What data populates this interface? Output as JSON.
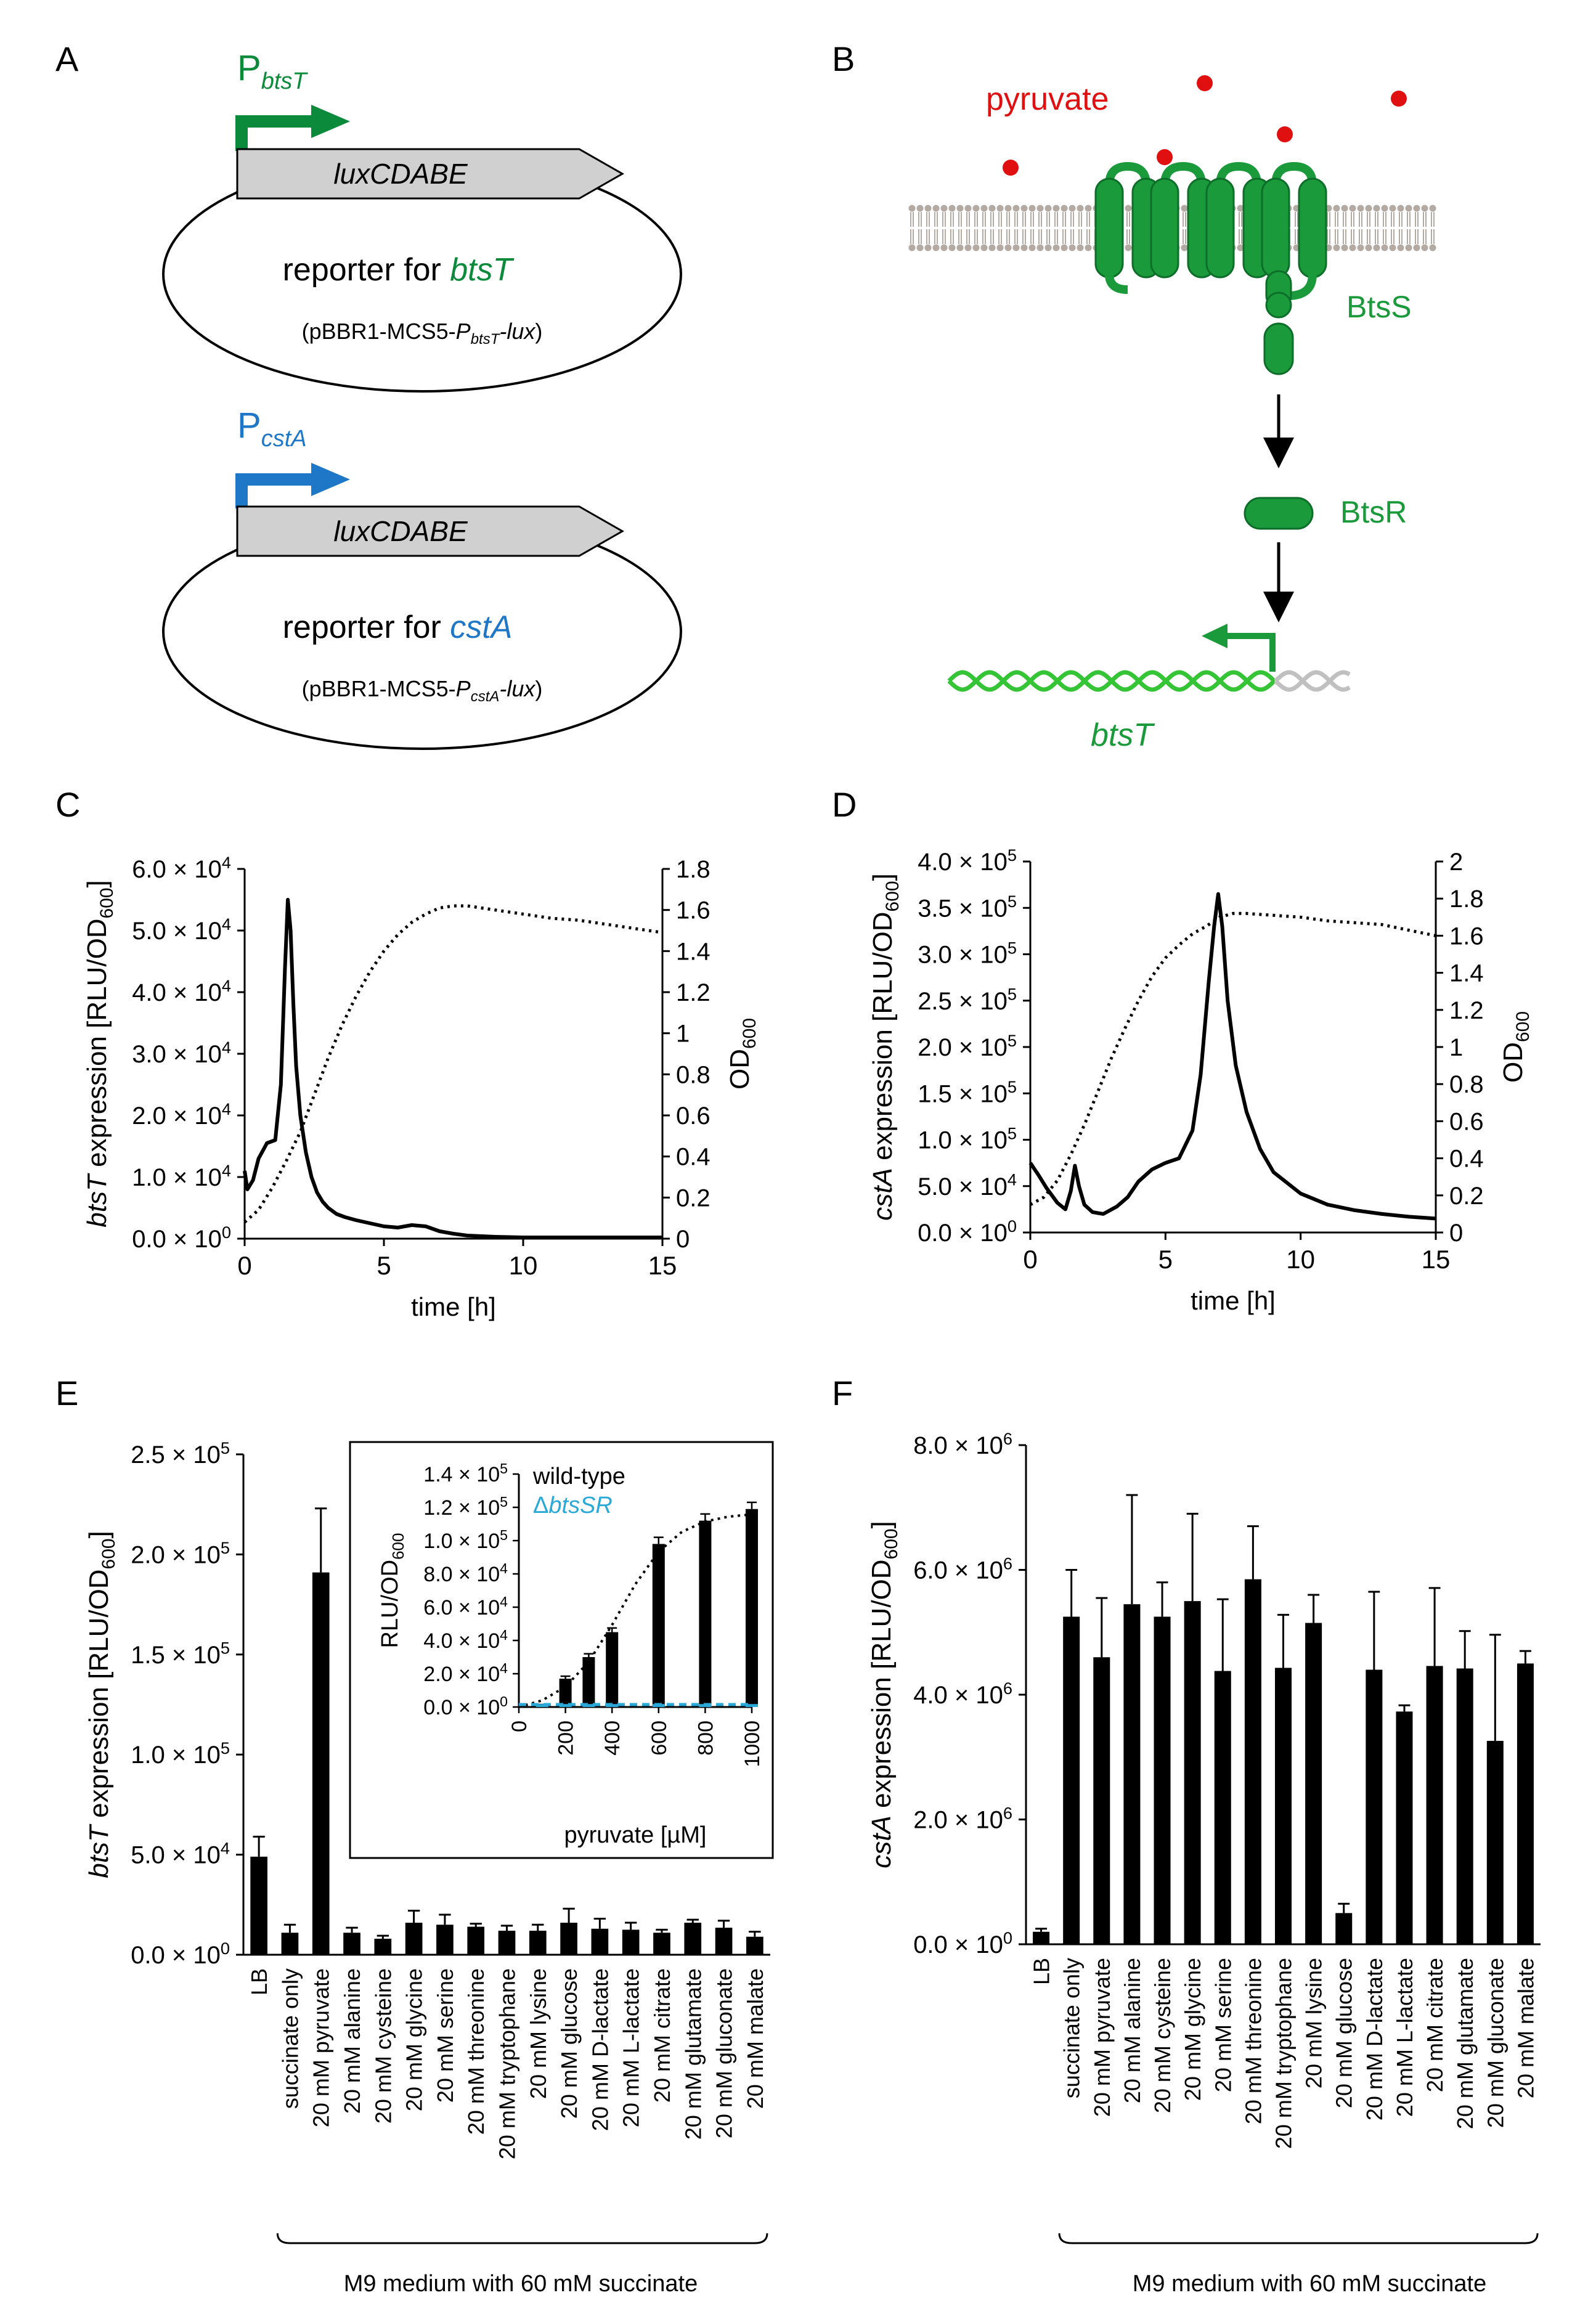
{
  "panels": {
    "A": {
      "letter": "A",
      "reporter1": {
        "promoter_main": "P",
        "promoter_sub": "btsT",
        "gene": "luxCDABE",
        "label_prefix": "reporter for ",
        "label_gene": "btsT",
        "plasmid_prefix": "(pBBR1-MCS5-",
        "plasmid_p": "P",
        "plasmid_psub": "btsT",
        "plasmid_suffix": "-lux)"
      },
      "reporter2": {
        "promoter_main": "P",
        "promoter_sub": "cstA",
        "gene": "luxCDABE",
        "label_prefix": "reporter for ",
        "label_gene": "cstA",
        "plasmid_prefix": "(pBBR1-MCS5-",
        "plasmid_p": "P",
        "plasmid_psub": "cstA",
        "plasmid_suffix": "-lux)"
      }
    },
    "B": {
      "letter": "B",
      "pyruvate": "pyruvate",
      "sensor": "BtsS",
      "regulator": "BtsR",
      "target": "btsT"
    },
    "C": {
      "letter": "C",
      "ylabel_gene": "btsT",
      "ylabel_rest": " expression [RLU/OD",
      "ylabel_sub": "600",
      "ylabel_end": "]",
      "y2label": "OD",
      "y2label_sub": "600",
      "xlabel": "time [h]",
      "yticks": [
        {
          "m": "0.0 × 10",
          "e": "0"
        },
        {
          "m": "1.0 × 10",
          "e": "4"
        },
        {
          "m": "2.0 × 10",
          "e": "4"
        },
        {
          "m": "3.0 × 10",
          "e": "4"
        },
        {
          "m": "4.0 × 10",
          "e": "4"
        },
        {
          "m": "5.0 × 10",
          "e": "4"
        },
        {
          "m": "6.0 × 10",
          "e": "4"
        }
      ],
      "y2ticks": [
        "0",
        "0.2",
        "0.4",
        "0.6",
        "0.8",
        "1",
        "1.2",
        "1.4",
        "1.6",
        "1.8"
      ],
      "xticks": [
        "0",
        "5",
        "10",
        "15"
      ]
    },
    "D": {
      "letter": "D",
      "ylabel_gene": "cstA",
      "ylabel_rest": " expression [RLU/OD",
      "ylabel_sub": "600",
      "ylabel_end": "]",
      "y2label": "OD",
      "y2label_sub": "600",
      "xlabel": "time [h]",
      "yticks": [
        {
          "m": "0.0 × 10",
          "e": "0"
        },
        {
          "m": "5.0 × 10",
          "e": "4"
        },
        {
          "m": "1.0 × 10",
          "e": "5"
        },
        {
          "m": "1.5 × 10",
          "e": "5"
        },
        {
          "m": "2.0 × 10",
          "e": "5"
        },
        {
          "m": "2.5 × 10",
          "e": "5"
        },
        {
          "m": "3.0 × 10",
          "e": "5"
        },
        {
          "m": "3.5 × 10",
          "e": "5"
        },
        {
          "m": "4.0 × 10",
          "e": "5"
        }
      ],
      "y2ticks": [
        "0",
        "0.2",
        "0.4",
        "0.6",
        "0.8",
        "1",
        "1.2",
        "1.4",
        "1.6",
        "1.8",
        "2"
      ],
      "xticks": [
        "0",
        "5",
        "10",
        "15"
      ]
    },
    "E": {
      "letter": "E",
      "ylabel_gene": "btsT",
      "ylabel_rest": " expression [RLU/OD",
      "ylabel_sub": "600",
      "ylabel_end": "]",
      "yticks": [
        {
          "m": "0.0 × 10",
          "e": "0"
        },
        {
          "m": "5.0 × 10",
          "e": "4"
        },
        {
          "m": "1.0 × 10",
          "e": "5"
        },
        {
          "m": "1.5 × 10",
          "e": "5"
        },
        {
          "m": "2.0 × 10",
          "e": "5"
        },
        {
          "m": "2.5 × 10",
          "e": "5"
        }
      ],
      "bracket_label": "M9 medium with 60 mM succinate",
      "inset": {
        "ylabel_main": "RLU/OD",
        "ylabel_sub": "600",
        "xlabel": "pyruvate [µM]",
        "legend_wt": "wild-type",
        "legend_mut_prefix": "Δ",
        "legend_mut": "btsSR",
        "yticks": [
          {
            "m": "0.0 × 10",
            "e": "0"
          },
          {
            "m": "2.0 × 10",
            "e": "4"
          },
          {
            "m": "4.0 × 10",
            "e": "4"
          },
          {
            "m": "6.0 × 10",
            "e": "4"
          },
          {
            "m": "8.0 × 10",
            "e": "4"
          },
          {
            "m": "1.0 × 10",
            "e": "5"
          },
          {
            "m": "1.2 × 10",
            "e": "5"
          },
          {
            "m": "1.4 × 10",
            "e": "5"
          }
        ],
        "xticks": [
          "0",
          "200",
          "400",
          "600",
          "800",
          "1000"
        ]
      }
    },
    "F": {
      "letter": "F",
      "ylabel_gene": "cstA",
      "ylabel_rest": " expression [RLU/OD",
      "ylabel_sub": "600",
      "ylabel_end": "]",
      "yticks": [
        {
          "m": "0.0 × 10",
          "e": "0"
        },
        {
          "m": "2.0 × 10",
          "e": "6"
        },
        {
          "m": "4.0 × 10",
          "e": "6"
        },
        {
          "m": "6.0 × 10",
          "e": "6"
        },
        {
          "m": "8.0 × 10",
          "e": "6"
        }
      ],
      "bracket_label": "M9 medium with 60 mM succinate"
    }
  },
  "chart_data": [
    {
      "id": "C",
      "type": "line",
      "xlim": [
        0,
        15
      ],
      "ylim": [
        0,
        60000
      ],
      "y2lim": [
        0,
        1.8
      ],
      "series": [
        {
          "style": "solid",
          "axis": "left",
          "x": [
            0,
            0.1,
            0.3,
            0.5,
            0.8,
            1.1,
            1.3,
            1.45,
            1.55,
            1.65,
            1.75,
            1.85,
            2.0,
            2.2,
            2.4,
            2.6,
            2.8,
            3.0,
            3.3,
            3.6,
            4.0,
            4.5,
            5.0,
            5.5,
            6.0,
            6.5,
            7.0,
            7.5,
            8.0,
            9.0,
            10.0,
            11.0,
            12.0,
            13.0,
            14.0,
            15.0
          ],
          "y": [
            11000,
            8000,
            9500,
            13000,
            15500,
            16000,
            25000,
            44000,
            55000,
            50000,
            38000,
            28000,
            20000,
            14000,
            10000,
            7500,
            6000,
            5000,
            4000,
            3500,
            3000,
            2500,
            2000,
            1800,
            2200,
            2000,
            1200,
            800,
            500,
            300,
            200,
            200,
            200,
            200,
            200,
            200
          ]
        },
        {
          "style": "dotted",
          "axis": "right",
          "x": [
            0,
            0.5,
            1,
            1.5,
            2,
            2.5,
            3,
            3.5,
            4,
            4.5,
            5,
            5.5,
            6,
            6.5,
            7,
            7.5,
            8,
            9,
            10,
            11,
            12,
            13,
            14,
            15
          ],
          "y": [
            0.08,
            0.14,
            0.25,
            0.38,
            0.52,
            0.7,
            0.88,
            1.04,
            1.18,
            1.3,
            1.4,
            1.48,
            1.54,
            1.58,
            1.61,
            1.62,
            1.62,
            1.6,
            1.58,
            1.56,
            1.55,
            1.53,
            1.51,
            1.49
          ]
        }
      ]
    },
    {
      "id": "D",
      "type": "line",
      "xlim": [
        0,
        15
      ],
      "ylim": [
        0,
        400000
      ],
      "y2lim": [
        0,
        2
      ],
      "series": [
        {
          "style": "solid",
          "axis": "left",
          "x": [
            0,
            0.3,
            0.6,
            1.0,
            1.3,
            1.5,
            1.65,
            1.8,
            2.0,
            2.3,
            2.7,
            3.2,
            3.6,
            4.0,
            4.5,
            5.0,
            5.5,
            6.0,
            6.3,
            6.6,
            6.8,
            6.95,
            7.1,
            7.3,
            7.6,
            8.0,
            8.5,
            9.0,
            10.0,
            11.0,
            12.0,
            13.0,
            14.0,
            15.0
          ],
          "y": [
            75000,
            62000,
            48000,
            32000,
            25000,
            45000,
            72000,
            50000,
            30000,
            22000,
            20000,
            28000,
            38000,
            55000,
            68000,
            75000,
            80000,
            110000,
            170000,
            270000,
            330000,
            365000,
            330000,
            250000,
            180000,
            130000,
            90000,
            65000,
            42000,
            30000,
            24000,
            20000,
            17000,
            15000
          ]
        },
        {
          "style": "dotted",
          "axis": "right",
          "x": [
            0,
            0.5,
            1,
            1.5,
            2,
            2.5,
            3,
            3.5,
            4,
            4.5,
            5,
            5.5,
            6,
            6.5,
            7,
            7.5,
            8,
            9,
            10,
            11,
            12,
            13,
            14,
            15
          ],
          "y": [
            0.15,
            0.19,
            0.28,
            0.42,
            0.58,
            0.76,
            0.94,
            1.1,
            1.25,
            1.38,
            1.48,
            1.55,
            1.61,
            1.65,
            1.7,
            1.72,
            1.72,
            1.71,
            1.7,
            1.68,
            1.67,
            1.66,
            1.63,
            1.6
          ]
        }
      ]
    },
    {
      "id": "E",
      "type": "bar",
      "ylim": [
        0,
        250000
      ],
      "categories": [
        "LB",
        "succinate only",
        "20 mM pyruvate",
        "20 mM alanine",
        "20 mM cysteine",
        "20 mM glycine",
        "20 mM serine",
        "20 mM threonine",
        "20 mM tryptophane",
        "20 mM lysine",
        "20 mM glucose",
        "20 mM D-lactate",
        "20 mM L-lactate",
        "20 mM citrate",
        "20 mM glutamate",
        "20 mM gluconate",
        "20 mM malate"
      ],
      "values": [
        49000,
        11000,
        191000,
        11000,
        8000,
        16000,
        15000,
        14000,
        12000,
        12000,
        16000,
        13000,
        12500,
        11000,
        16000,
        13500,
        9000
      ],
      "errors": [
        10000,
        4000,
        32000,
        2500,
        1500,
        6000,
        5000,
        1500,
        2500,
        3000,
        7000,
        5000,
        3500,
        1500,
        1500,
        3500,
        2500
      ]
    },
    {
      "id": "E-inset",
      "type": "bar",
      "xlim": [
        0,
        1000
      ],
      "ylim": [
        0,
        140000
      ],
      "x": [
        100,
        200,
        300,
        400,
        600,
        800,
        1000
      ],
      "series": [
        {
          "name": "wild-type",
          "values": [
            1000,
            17000,
            30000,
            45000,
            98000,
            112000,
            119000
          ],
          "errors": [
            500,
            1500,
            2000,
            2500,
            4000,
            4000,
            4000
          ]
        },
        {
          "name": "ΔbtsSR",
          "values": [
            300,
            300,
            300,
            300,
            300,
            300,
            300
          ],
          "errors": [
            200,
            200,
            200,
            200,
            200,
            200,
            200
          ]
        }
      ]
    },
    {
      "id": "F",
      "type": "bar",
      "ylim": [
        0,
        8000000
      ],
      "categories": [
        "LB",
        "succinate only",
        "20 mM pyruvate",
        "20 mM alanine",
        "20 mM cysteine",
        "20 mM glycine",
        "20 mM serine",
        "20 mM threonine",
        "20 mM tryptophane",
        "20 mM lysine",
        "20 mM glucose",
        "20 mM D-lactate",
        "20 mM L-lactate",
        "20 mM citrate",
        "20 mM glutamate",
        "20 mM gluconate",
        "20 mM malate"
      ],
      "values": [
        200000,
        5250000,
        4600000,
        5450000,
        5250000,
        5500000,
        4380000,
        5850000,
        4430000,
        5150000,
        500000,
        4400000,
        3730000,
        4460000,
        4420000,
        3260000,
        4500000
      ],
      "errors": [
        50000,
        750000,
        950000,
        1750000,
        550000,
        1400000,
        1150000,
        850000,
        850000,
        450000,
        150000,
        1250000,
        100000,
        1250000,
        600000,
        1700000,
        200000
      ]
    }
  ],
  "colors": {
    "black": "#000000",
    "green": "#0a8a3a",
    "bright_green": "#35c435",
    "blue": "#1f77c8",
    "red": "#e01010",
    "gray": "#d0d0d0",
    "cyan": "#2aa8d8",
    "membrane": "#b4aaa4"
  }
}
